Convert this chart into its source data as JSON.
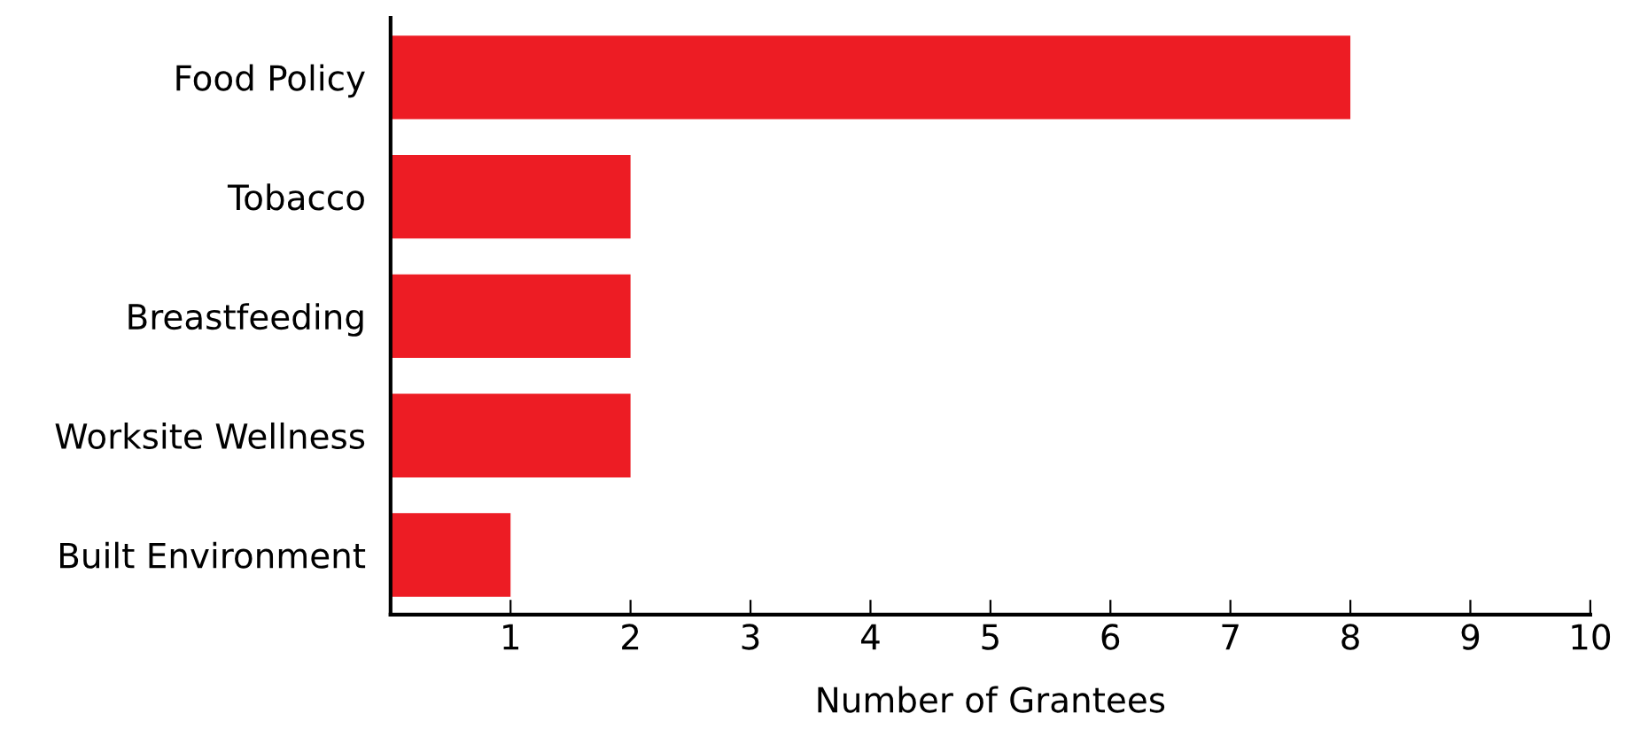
{
  "chart_data": {
    "type": "bar",
    "orientation": "horizontal",
    "xlabel": "Number of Grantees",
    "categories": [
      "Food Policy",
      "Tobacco",
      "Breastfeeding",
      "Worksite Wellness",
      "Built Environment"
    ],
    "values": [
      8,
      2,
      2,
      2,
      1
    ],
    "color": "#ed1c24",
    "xlim": [
      0,
      10
    ],
    "xticks": [
      1,
      2,
      3,
      4,
      5,
      6,
      7,
      8,
      9,
      10
    ],
    "grid": false,
    "legend": false
  }
}
